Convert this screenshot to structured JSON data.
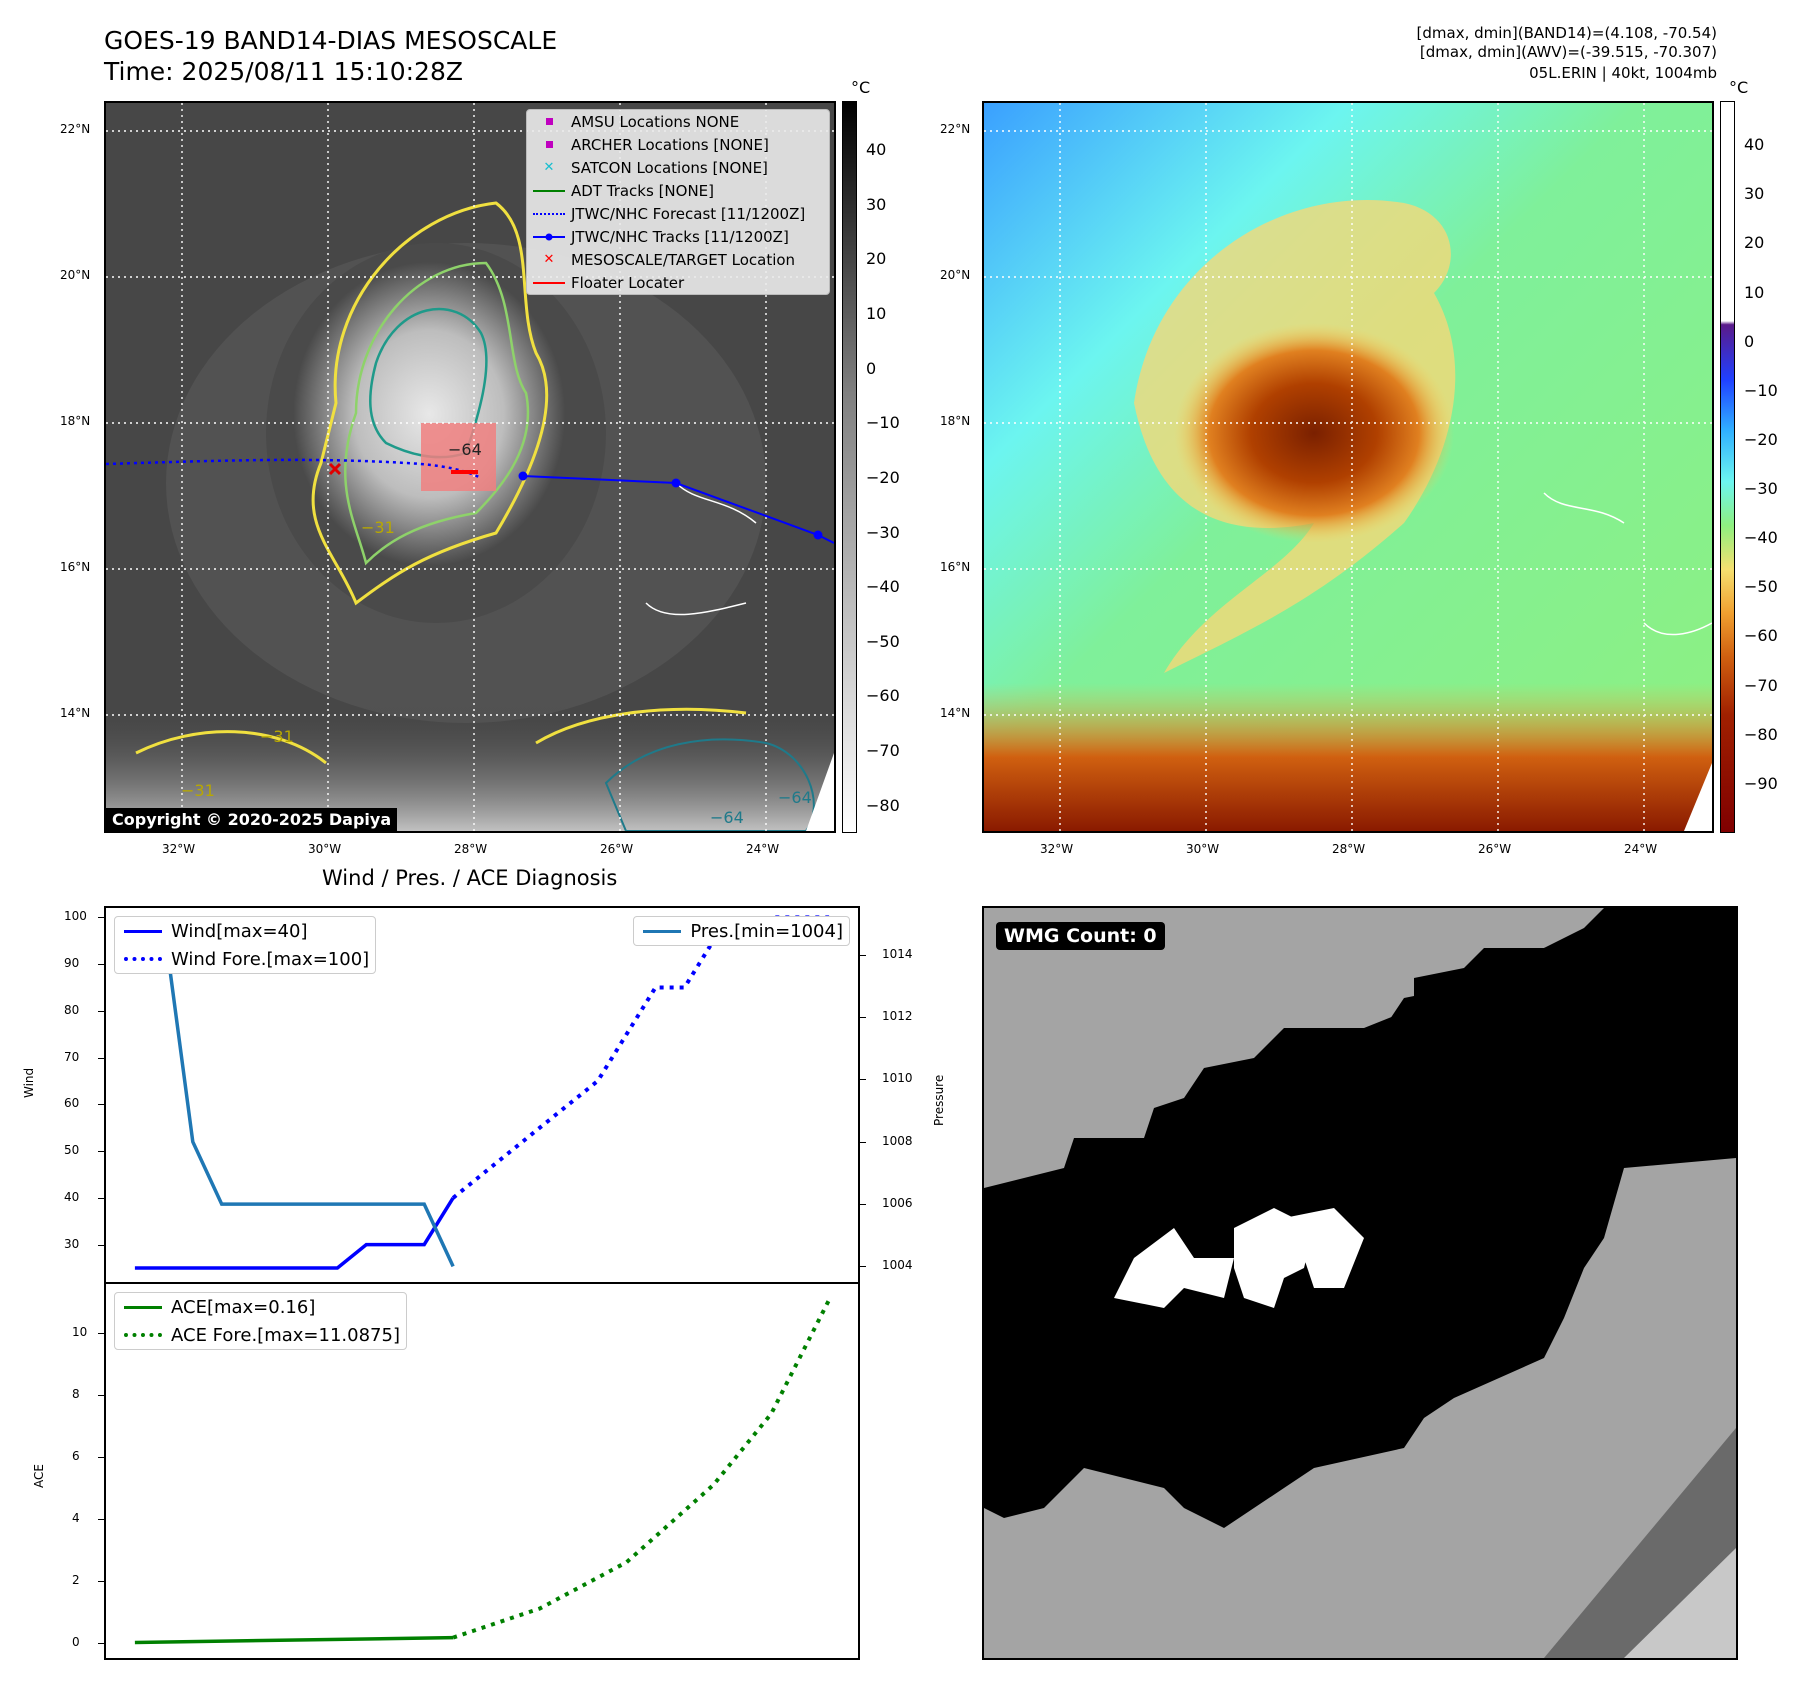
{
  "header": {
    "title_line1": "GOES-19 BAND14-DIAS MESOSCALE",
    "title_line2": "Time: 2025/08/11 15:10:28Z",
    "info_line1": "[dmax, dmin](BAND14)=(4.108, -70.54)",
    "info_line2": "[dmax, dmin](AWV)=(-39.515, -70.307)",
    "info_line3": "05L.ERIN | 40kt, 1004mb"
  },
  "map": {
    "lat_labels": [
      "22°N",
      "20°N",
      "18°N",
      "16°N",
      "14°N"
    ],
    "lon_labels": [
      "32°W",
      "30°W",
      "28°W",
      "26°W",
      "24°W"
    ],
    "contour_labels": [
      "−64",
      "−31",
      "−31",
      "−64",
      "−64",
      "−31"
    ],
    "copyright": "Copyright © 2020-2025 Dapiya",
    "colorbar_unit": "°C",
    "colorbar_ticks": [
      "40",
      "30",
      "20",
      "10",
      "0",
      "−10",
      "−20",
      "−30",
      "−40",
      "−50",
      "−60",
      "−70",
      "−80"
    ],
    "legend": [
      {
        "label": "AMSU Locations NONE",
        "color": "#bf00bf",
        "kind": "square"
      },
      {
        "label": "ARCHER Locations [NONE]",
        "color": "#bf00bf",
        "kind": "square"
      },
      {
        "label": "SATCON Locations [NONE]",
        "color": "#17becf",
        "kind": "x"
      },
      {
        "label": "ADT Tracks [NONE]",
        "color": "#008000",
        "kind": "line"
      },
      {
        "label": "JTWC/NHC Forecast [11/1200Z]",
        "color": "#0000ff",
        "kind": "dotted"
      },
      {
        "label": "JTWC/NHC Tracks [11/1200Z]",
        "color": "#0000ff",
        "kind": "linedot"
      },
      {
        "label": "MESOSCALE/TARGET Location",
        "color": "#ff0000",
        "kind": "x"
      },
      {
        "label": "Floater Locater",
        "color": "#ff0000",
        "kind": "line"
      }
    ]
  },
  "awv": {
    "lat_labels": [
      "22°N",
      "20°N",
      "18°N",
      "16°N",
      "14°N"
    ],
    "lon_labels": [
      "32°W",
      "30°W",
      "28°W",
      "26°W",
      "24°W"
    ],
    "colorbar_unit": "°C",
    "colorbar_ticks": [
      "40",
      "30",
      "20",
      "10",
      "0",
      "−10",
      "−20",
      "−30",
      "−40",
      "−50",
      "−60",
      "−70",
      "−80",
      "−90"
    ]
  },
  "diagnosis": {
    "title": "Wind / Pres. / ACE Diagnosis",
    "wind_ylabel": "Wind",
    "pres_ylabel": "Pressure",
    "ace_ylabel": "ACE",
    "wind_ticks": [
      "100",
      "90",
      "80",
      "70",
      "60",
      "50",
      "40",
      "30"
    ],
    "pres_ticks": [
      "1014",
      "1012",
      "1010",
      "1008",
      "1006",
      "1004"
    ],
    "ace_ticks": [
      "10",
      "8",
      "6",
      "4",
      "2",
      "0"
    ],
    "legend_wind": "Wind[max=40]",
    "legend_wind_fore": "Wind Fore.[max=100]",
    "legend_pres": "Pres.[min=1004]",
    "legend_ace": "ACE[max=0.16]",
    "legend_ace_fore": "ACE Fore.[max=11.0875]"
  },
  "chart_data": [
    {
      "type": "line",
      "series": [
        {
          "name": "Wind[max=40]",
          "x": [
            0,
            1,
            2,
            3,
            4,
            5,
            6,
            7,
            8,
            9,
            10,
            11
          ],
          "values": [
            25,
            25,
            25,
            25,
            25,
            25,
            25,
            25,
            30,
            30,
            30,
            40
          ],
          "color": "#0000ff",
          "style": "solid"
        },
        {
          "name": "Wind Fore.[max=100]",
          "x": [
            11,
            12,
            13,
            14,
            15,
            16,
            17,
            18,
            19,
            20,
            21,
            22,
            23,
            24
          ],
          "values": [
            40,
            45,
            50,
            55,
            60,
            65,
            75,
            85,
            85,
            95,
            95,
            100,
            100,
            100
          ],
          "color": "#0000ff",
          "style": "dotted"
        },
        {
          "name": "Pres.[min=1004]",
          "x": [
            0,
            1,
            2,
            3,
            4,
            5,
            6,
            7,
            8,
            9,
            10,
            11
          ],
          "values": [
            1015,
            1015,
            1008,
            1006,
            1006,
            1006,
            1006,
            1006,
            1006,
            1006,
            1006,
            1004
          ],
          "color": "#1f77b4",
          "style": "solid",
          "axis": "right"
        }
      ],
      "ylabel": "Wind",
      "y2label": "Pressure",
      "ylim": [
        22,
        102
      ],
      "y2lim": [
        1003.5,
        1015.5
      ],
      "grid": false,
      "legend": "top-left / top-right"
    },
    {
      "type": "line",
      "series": [
        {
          "name": "ACE[max=0.16]",
          "x": [
            0,
            11
          ],
          "values": [
            0,
            0.16
          ],
          "color": "#008000",
          "style": "solid"
        },
        {
          "name": "ACE Fore.[max=11.0875]",
          "x": [
            11,
            14,
            17,
            20,
            22,
            24
          ],
          "values": [
            0.16,
            1.1,
            2.6,
            5.1,
            7.4,
            11.0875
          ],
          "color": "#008000",
          "style": "dotted"
        }
      ],
      "ylabel": "ACE",
      "ylim": [
        -0.5,
        11.6
      ],
      "grid": false,
      "legend": "top-left"
    }
  ],
  "wmg": {
    "count_label": "WMG Count: 0"
  }
}
